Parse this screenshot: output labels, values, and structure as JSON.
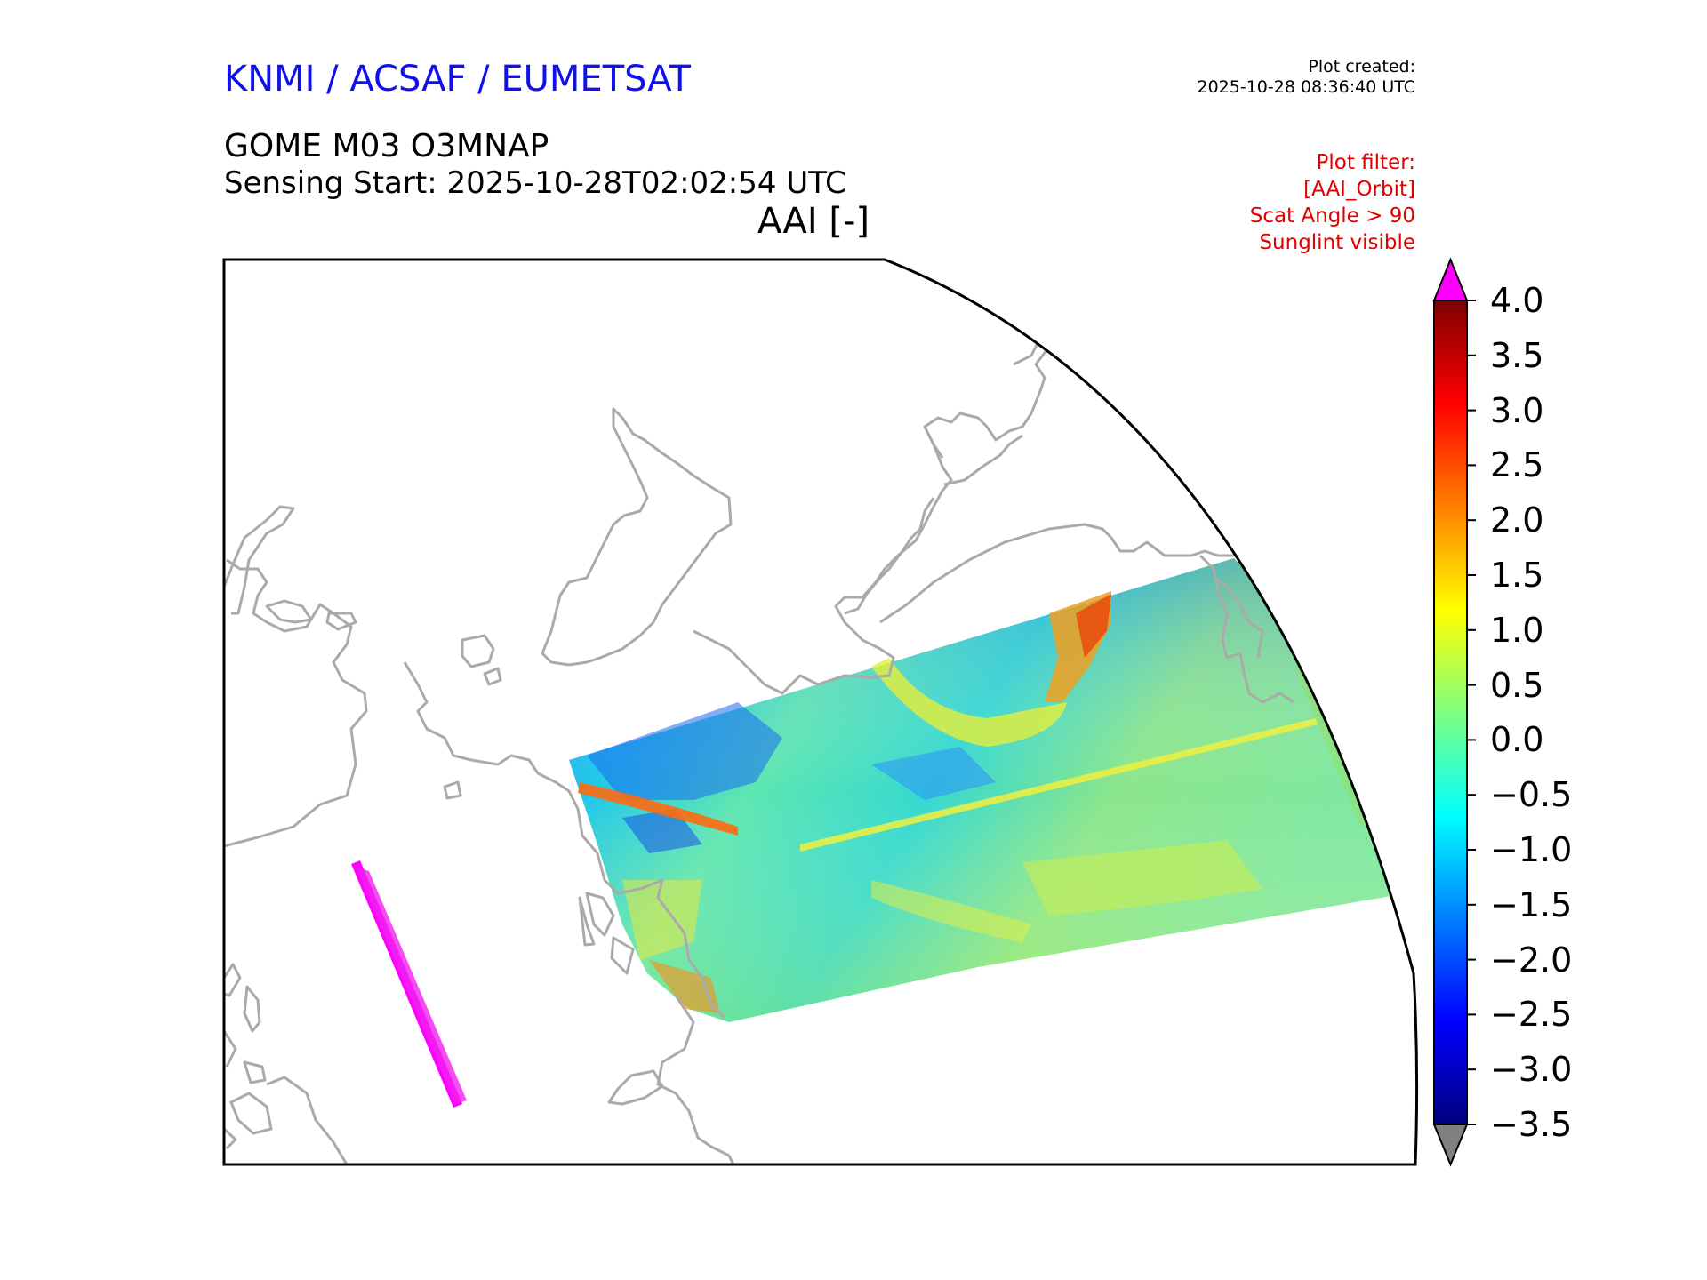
{
  "header": {
    "organization": "KNMI / ACSAF / EUMETSAT",
    "product": "GOME M03 O3MNAP",
    "sensing_start": "Sensing Start: 2025-10-28T02:02:54 UTC",
    "variable": "AAI [-]"
  },
  "plot_created": {
    "label": "Plot created:",
    "timestamp": "2025-10-28 08:36:40 UTC"
  },
  "plot_filter": {
    "title": "Plot filter:",
    "lines": [
      "[AAI_Orbit]",
      "Scat Angle > 90",
      "Sunglint visible"
    ]
  },
  "colorbar": {
    "min": -3.5,
    "max": 4.0,
    "ticks": [
      "4.0",
      "3.5",
      "3.0",
      "2.5",
      "2.0",
      "1.5",
      "1.0",
      "0.5",
      "0.0",
      "−0.5",
      "−1.0",
      "−1.5",
      "−2.0",
      "−2.5",
      "−3.0",
      "−3.5"
    ],
    "over_color": "#ff00ff",
    "under_color": "#808080",
    "colormap": [
      "#00007f",
      "#0000ff",
      "#007fff",
      "#00ffff",
      "#7fff7f",
      "#ffff00",
      "#ff7f00",
      "#ff0000",
      "#7f0000"
    ]
  },
  "map": {
    "coastline_color": "#aaaaaa",
    "flagged_pixels_color": "#ff00ff"
  }
}
